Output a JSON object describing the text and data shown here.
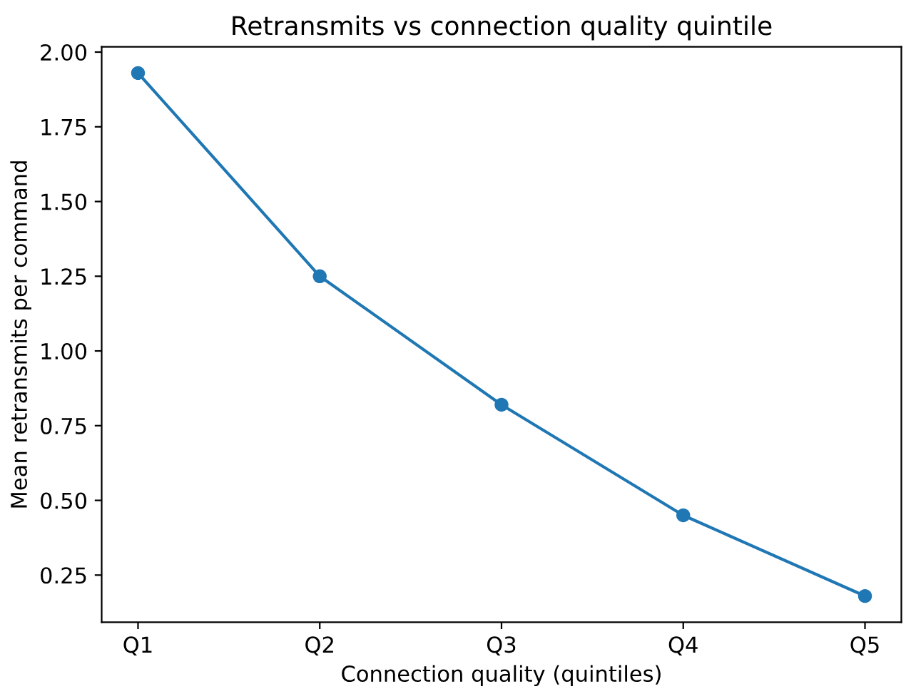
{
  "chart_data": {
    "type": "line",
    "title": "Retransmits vs connection quality quintile",
    "xlabel": "Connection quality (quintiles)",
    "ylabel": "Mean retransmits per command",
    "categories": [
      "Q1",
      "Q2",
      "Q3",
      "Q4",
      "Q5"
    ],
    "series": [
      {
        "color": "#1f77b4",
        "values": [
          1.93,
          1.25,
          0.82,
          0.45,
          0.18
        ]
      }
    ],
    "ylim": [
      0.0925,
      2.0175
    ],
    "yticks": [
      {
        "value": 0.25,
        "label": "0.25"
      },
      {
        "value": 0.5,
        "label": "0.50"
      },
      {
        "value": 0.75,
        "label": "0.75"
      },
      {
        "value": 1.0,
        "label": "1.00"
      },
      {
        "value": 1.25,
        "label": "1.25"
      },
      {
        "value": 1.5,
        "label": "1.50"
      },
      {
        "value": 1.75,
        "label": "1.75"
      },
      {
        "value": 2.0,
        "label": "2.00"
      }
    ],
    "marker": "circle",
    "line_style": "solid",
    "grid": false
  }
}
